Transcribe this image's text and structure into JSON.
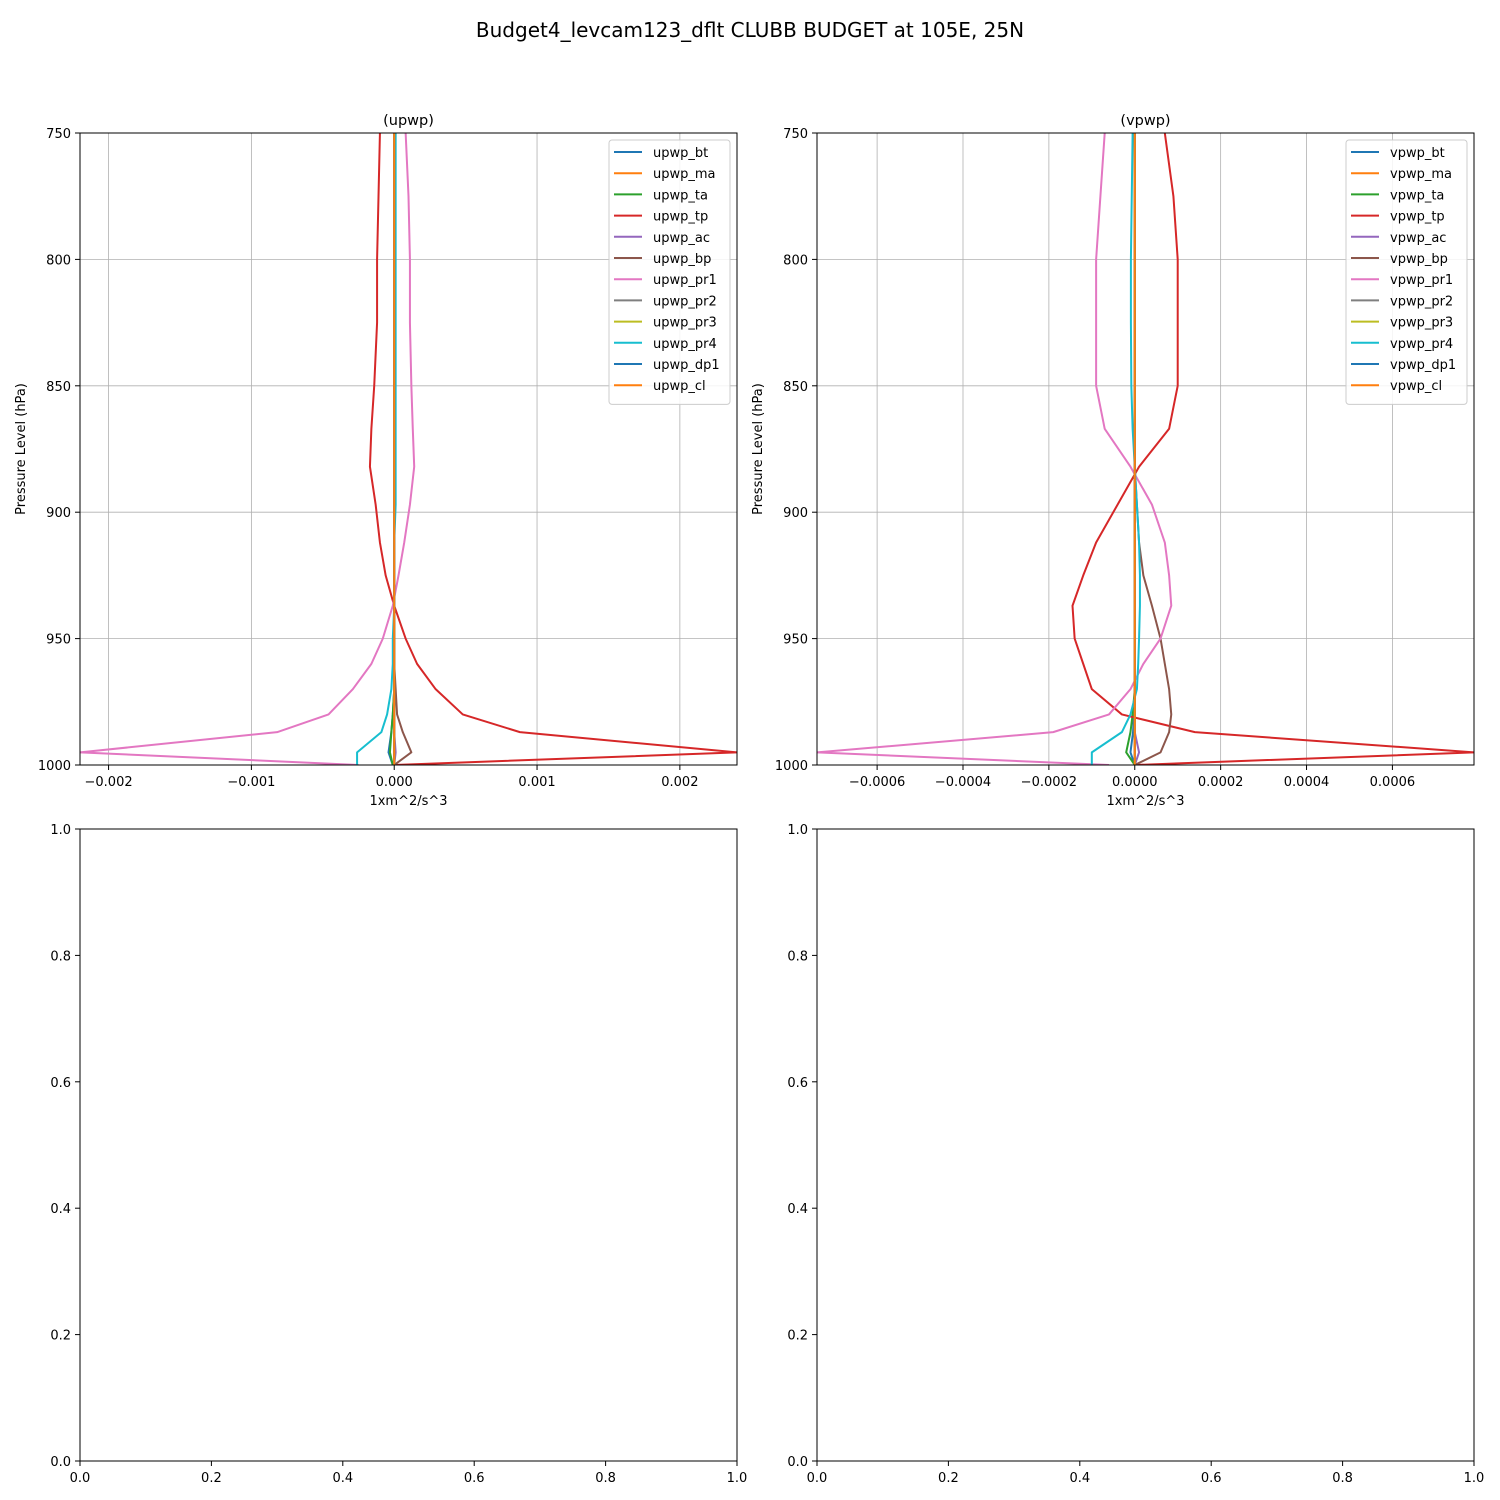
{
  "figure_title": "Budget4_levcam123_dflt CLUBB BUDGET at 105E, 25N",
  "chart_data": [
    {
      "type": "line",
      "title": "(upwp)",
      "xlabel": "1xm^2/s^3",
      "ylabel": "Pressure Level (hPa)",
      "xlim": [
        -0.0022,
        0.0024
      ],
      "ylim": [
        1000,
        750
      ],
      "y_inverted": true,
      "grid": true,
      "legend_position": "top-right",
      "xticks": [
        "−0.002",
        "−0.001",
        "0.000",
        "0.001",
        "0.002"
      ],
      "xtick_values": [
        -0.002,
        -0.001,
        0.0,
        0.001,
        0.002
      ],
      "yticks": [
        "750",
        "800",
        "850",
        "900",
        "950",
        "1000"
      ],
      "ytick_values": [
        750,
        800,
        850,
        900,
        950,
        1000
      ],
      "levels": [
        750,
        775,
        800,
        825,
        850,
        867,
        882,
        897,
        912,
        925,
        937,
        950,
        960,
        970,
        980,
        987,
        995,
        1000
      ],
      "series": [
        {
          "name": "upwp_bt",
          "color": "#1f77b4",
          "x": [
            0,
            0,
            0,
            0,
            0,
            0,
            0,
            0,
            0,
            0,
            0,
            0,
            0,
            0,
            -1e-05,
            -2e-05,
            -4e-05,
            -1e-05
          ]
        },
        {
          "name": "upwp_ma",
          "color": "#ff7f0e",
          "x": [
            0,
            0,
            0,
            0,
            0,
            0,
            0,
            0,
            0,
            0,
            0,
            0,
            0,
            0,
            0,
            0,
            0,
            0
          ]
        },
        {
          "name": "upwp_ta",
          "color": "#2ca02c",
          "x": [
            0,
            0,
            0,
            0,
            0,
            0,
            0,
            0,
            0,
            0,
            0,
            0,
            0,
            0,
            -1e-05,
            -2e-05,
            -3e-05,
            -1e-05
          ]
        },
        {
          "name": "upwp_tp",
          "color": "#d62728",
          "x": [
            -0.0001,
            -0.00011,
            -0.00012,
            -0.00012,
            -0.00014,
            -0.00016,
            -0.00017,
            -0.00013,
            -0.0001,
            -6e-05,
            0.0,
            8e-05,
            0.00016,
            0.00029,
            0.00048,
            0.00088,
            0.0024,
            0.0
          ]
        },
        {
          "name": "upwp_ac",
          "color": "#9467bd",
          "x": [
            0,
            0,
            0,
            0,
            0,
            0,
            0,
            0,
            0,
            0,
            0,
            0,
            0,
            0,
            0,
            0,
            1e-05,
            0
          ]
        },
        {
          "name": "upwp_bp",
          "color": "#8c564b",
          "x": [
            0,
            0,
            0,
            0,
            0,
            0,
            0,
            0,
            0,
            0,
            0,
            0,
            0,
            1e-05,
            2e-05,
            6e-05,
            0.00012,
            0.0
          ]
        },
        {
          "name": "upwp_pr1",
          "color": "#e377c2",
          "x": [
            8e-05,
            0.0001,
            0.00011,
            0.00011,
            0.00012,
            0.00013,
            0.00014,
            0.00011,
            7e-05,
            3e-05,
            -1e-05,
            -8e-05,
            -0.00016,
            -0.00029,
            -0.00046,
            -0.00082,
            -0.0022,
            -0.00025
          ]
        },
        {
          "name": "upwp_pr2",
          "color": "#7f7f7f",
          "x": [
            0,
            0,
            0,
            0,
            0,
            0,
            0,
            0,
            0,
            0,
            0,
            0,
            0,
            0,
            0,
            0,
            0,
            0
          ]
        },
        {
          "name": "upwp_pr3",
          "color": "#bcbd22",
          "x": [
            0,
            0,
            0,
            0,
            0,
            0,
            0,
            0,
            0,
            0,
            0,
            0,
            0,
            0,
            0,
            0,
            0,
            0
          ]
        },
        {
          "name": "upwp_pr4",
          "color": "#17becf",
          "x": [
            1e-05,
            1e-05,
            1e-05,
            1e-05,
            1e-05,
            1e-05,
            1e-05,
            1e-05,
            0.0,
            0.0,
            0.0,
            -1e-05,
            -1e-05,
            -2e-05,
            -5e-05,
            -9e-05,
            -0.00026,
            -0.00026
          ]
        },
        {
          "name": "upwp_dp1",
          "color": "#1f77b4",
          "x": [
            0,
            0,
            0,
            0,
            0,
            0,
            0,
            0,
            0,
            0,
            0,
            0,
            0,
            0,
            0,
            0,
            0,
            0
          ]
        },
        {
          "name": "upwp_cl",
          "color": "#ff7f0e",
          "x": [
            0,
            0,
            0,
            0,
            0,
            0,
            0,
            0,
            0,
            0,
            0,
            0,
            0,
            0,
            0,
            0,
            0,
            0
          ]
        }
      ]
    },
    {
      "type": "line",
      "title": "(vpwp)",
      "xlabel": "1xm^2/s^3",
      "ylabel": "Pressure Level (hPa)",
      "xlim": [
        -0.00074,
        0.00079
      ],
      "ylim": [
        1000,
        750
      ],
      "y_inverted": true,
      "grid": true,
      "legend_position": "top-right",
      "xticks": [
        "−0.0006",
        "−0.0004",
        "−0.0002",
        "0.0000",
        "0.0002",
        "0.0004",
        "0.0006"
      ],
      "xtick_values": [
        -0.0006,
        -0.0004,
        -0.0002,
        0.0,
        0.0002,
        0.0004,
        0.0006
      ],
      "yticks": [
        "750",
        "800",
        "850",
        "900",
        "950",
        "1000"
      ],
      "ytick_values": [
        750,
        800,
        850,
        900,
        950,
        1000
      ],
      "levels": [
        750,
        775,
        800,
        825,
        850,
        867,
        882,
        897,
        912,
        925,
        937,
        950,
        960,
        970,
        980,
        987,
        995,
        1000
      ],
      "series": [
        {
          "name": "vpwp_bt",
          "color": "#1f77b4",
          "x": [
            0,
            0,
            0,
            0,
            0,
            0,
            0,
            0,
            0,
            0,
            0,
            0,
            0,
            0,
            -2e-06,
            -4e-06,
            -1e-05,
            0
          ]
        },
        {
          "name": "vpwp_ma",
          "color": "#ff7f0e",
          "x": [
            0,
            0,
            0,
            0,
            0,
            0,
            0,
            0,
            0,
            0,
            0,
            0,
            0,
            0,
            0,
            0,
            0,
            0
          ]
        },
        {
          "name": "vpwp_ta",
          "color": "#2ca02c",
          "x": [
            0,
            0,
            0,
            0,
            0,
            0,
            0,
            0,
            0,
            0,
            0,
            0,
            0,
            0,
            -5e-06,
            -1e-05,
            -2e-05,
            0
          ]
        },
        {
          "name": "vpwp_tp",
          "color": "#d62728",
          "x": [
            7e-05,
            9e-05,
            0.0001,
            0.0001,
            0.0001,
            8e-05,
            1e-05,
            -4e-05,
            -9e-05,
            -0.00012,
            -0.000145,
            -0.00014,
            -0.00012,
            -0.0001,
            -3e-05,
            0.00014,
            0.00079,
            0.0
          ]
        },
        {
          "name": "vpwp_ac",
          "color": "#9467bd",
          "x": [
            0,
            0,
            0,
            0,
            0,
            0,
            0,
            0,
            0,
            0,
            0,
            0,
            0,
            0,
            0,
            0,
            1e-05,
            0
          ]
        },
        {
          "name": "vpwp_bp",
          "color": "#8c564b",
          "x": [
            0,
            0,
            0,
            0,
            0,
            0,
            0,
            5e-06,
            1e-05,
            2e-05,
            4e-05,
            6e-05,
            7e-05,
            8e-05,
            8.5e-05,
            8e-05,
            6e-05,
            0.0
          ]
        },
        {
          "name": "vpwp_pr1",
          "color": "#e377c2",
          "x": [
            -7e-05,
            -8e-05,
            -9e-05,
            -9e-05,
            -9e-05,
            -7e-05,
            -1e-05,
            4e-05,
            7e-05,
            8e-05,
            8.5e-05,
            6e-05,
            2e-05,
            -1e-05,
            -6e-05,
            -0.00019,
            -0.00074,
            -6e-05
          ]
        },
        {
          "name": "vpwp_pr2",
          "color": "#7f7f7f",
          "x": [
            0,
            0,
            0,
            0,
            0,
            0,
            0,
            0,
            0,
            0,
            0,
            0,
            0,
            0,
            0,
            0,
            0,
            0
          ]
        },
        {
          "name": "vpwp_pr3",
          "color": "#bcbd22",
          "x": [
            0,
            0,
            0,
            0,
            0,
            0,
            0,
            0,
            0,
            0,
            0,
            0,
            0,
            0,
            0,
            0,
            0,
            0
          ]
        },
        {
          "name": "vpwp_pr4",
          "color": "#17becf",
          "x": [
            -5e-06,
            -7e-06,
            -9e-06,
            -9e-06,
            -8e-06,
            -5e-06,
            0.0,
            5e-06,
            1e-05,
            1.2e-05,
            1.2e-05,
            1e-05,
            8e-06,
            5e-06,
            -1e-05,
            -3e-05,
            -0.0001,
            -0.0001
          ]
        },
        {
          "name": "vpwp_dp1",
          "color": "#1f77b4",
          "x": [
            0,
            0,
            0,
            0,
            0,
            0,
            0,
            0,
            0,
            0,
            0,
            0,
            0,
            0,
            0,
            0,
            0,
            0
          ]
        },
        {
          "name": "vpwp_cl",
          "color": "#ff7f0e",
          "x": [
            0,
            0,
            0,
            0,
            0,
            0,
            0,
            0,
            0,
            0,
            0,
            0,
            0,
            0,
            0,
            0,
            0,
            0
          ]
        }
      ]
    },
    {
      "type": "line",
      "title": "",
      "xlim": [
        0,
        1
      ],
      "ylim": [
        0,
        1
      ],
      "xticks": [
        "0.0",
        "0.2",
        "0.4",
        "0.6",
        "0.8",
        "1.0"
      ],
      "yticks": [
        "0.0",
        "0.2",
        "0.4",
        "0.6",
        "0.8",
        "1.0"
      ],
      "series": []
    },
    {
      "type": "line",
      "title": "",
      "xlim": [
        0,
        1
      ],
      "ylim": [
        0,
        1
      ],
      "xticks": [
        "0.0",
        "0.2",
        "0.4",
        "0.6",
        "0.8",
        "1.0"
      ],
      "yticks": [
        "0.0",
        "0.2",
        "0.4",
        "0.6",
        "0.8",
        "1.0"
      ],
      "series": []
    }
  ]
}
